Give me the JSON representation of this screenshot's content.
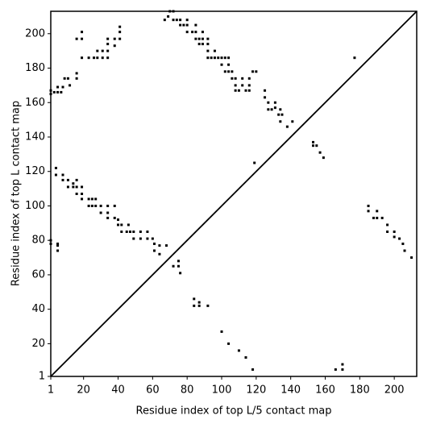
{
  "chart_data": {
    "type": "scatter",
    "x_label": "Residue index of top L/5 contact map",
    "y_label": "Residue index of top L contact map",
    "xlim": [
      1,
      213
    ],
    "ylim": [
      1,
      213
    ],
    "xticks": [
      1,
      20,
      40,
      60,
      80,
      100,
      120,
      140,
      160,
      180,
      200
    ],
    "yticks": [
      1,
      20,
      40,
      60,
      80,
      100,
      120,
      140,
      160,
      180,
      200
    ],
    "color": "#000000",
    "x": [
      1,
      1,
      3,
      5,
      5,
      7,
      8,
      9,
      11,
      12,
      16,
      16,
      16,
      19,
      19,
      19,
      23,
      26,
      28,
      28,
      31,
      31,
      34,
      34,
      34,
      34,
      38,
      38,
      41,
      41,
      41,
      67,
      69,
      70,
      72,
      72,
      74,
      76,
      76,
      78,
      80,
      80,
      80,
      83,
      85,
      85,
      85,
      87,
      87,
      89,
      89,
      89,
      92,
      92,
      92,
      92,
      94,
      96,
      96,
      98,
      100,
      100,
      102,
      102,
      104,
      104,
      104,
      106,
      106,
      108,
      108,
      108,
      110,
      112,
      112,
      114,
      116,
      116,
      116,
      118,
      120,
      125,
      125,
      127,
      127,
      129,
      131,
      131,
      133,
      134,
      135,
      134,
      138,
      141,
      1,
      1,
      5,
      5,
      5,
      4,
      4,
      8,
      8,
      11,
      11,
      14,
      14,
      16,
      16,
      16,
      19,
      19,
      19,
      23,
      23,
      25,
      25,
      27,
      27,
      30,
      30,
      34,
      34,
      34,
      38,
      38,
      40,
      40,
      42,
      42,
      45,
      46,
      47,
      49,
      49,
      53,
      53,
      57,
      57,
      60,
      61,
      61,
      64,
      64,
      68,
      72,
      75,
      75,
      76,
      119,
      177,
      84,
      87,
      87,
      92,
      84,
      100,
      104,
      110,
      114,
      118,
      153,
      153,
      155,
      157,
      159,
      166,
      170,
      170,
      185,
      185,
      188,
      190,
      190,
      193,
      196,
      196,
      200,
      200,
      203,
      205,
      206,
      210
    ],
    "values": [
      165,
      167,
      166,
      166,
      169,
      166,
      169,
      174,
      174,
      170,
      174,
      177,
      197,
      197,
      201,
      186,
      186,
      186,
      186,
      190,
      190,
      186,
      186,
      190,
      194,
      197,
      197,
      193,
      197,
      201,
      204,
      208,
      210,
      213,
      213,
      208,
      208,
      208,
      205,
      205,
      205,
      208,
      201,
      201,
      201,
      205,
      197,
      197,
      194,
      194,
      197,
      201,
      197,
      194,
      190,
      186,
      186,
      186,
      190,
      186,
      186,
      182,
      178,
      186,
      186,
      182,
      178,
      174,
      178,
      174,
      170,
      167,
      167,
      170,
      174,
      167,
      170,
      174,
      167,
      178,
      178,
      167,
      163,
      160,
      156,
      156,
      157,
      160,
      153,
      156,
      153,
      149,
      146,
      149,
      78,
      80,
      74,
      78,
      77,
      122,
      118,
      118,
      115,
      115,
      111,
      111,
      113,
      107,
      111,
      115,
      111,
      107,
      104,
      104,
      100,
      104,
      100,
      104,
      100,
      100,
      96,
      100,
      96,
      93,
      100,
      93,
      92,
      89,
      89,
      85,
      85,
      89,
      85,
      85,
      81,
      81,
      85,
      81,
      85,
      81,
      78,
      74,
      77,
      72,
      77,
      65,
      65,
      68,
      61,
      125,
      186,
      46,
      44,
      42,
      42,
      42,
      27,
      20,
      16,
      12,
      5,
      135,
      137,
      135,
      131,
      128,
      5,
      5,
      8,
      97,
      100,
      93,
      97,
      93,
      93,
      89,
      85,
      82,
      85,
      81,
      78,
      74,
      70
    ]
  }
}
